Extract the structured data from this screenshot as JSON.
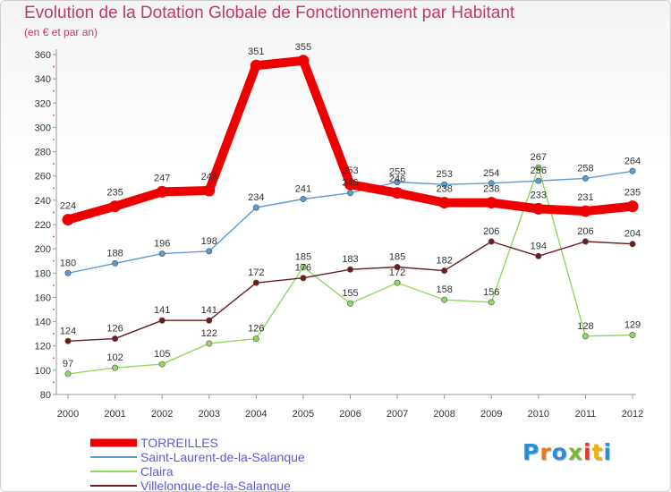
{
  "title": "Evolution de la Dotation Globale de Fonctionnement par Habitant",
  "subtitle": "(en € et par an)",
  "logo": {
    "text": "Proxiti",
    "letter_colors": [
      "#2a8fd0",
      "#e87a1c",
      "#2a8fd0",
      "#7db83a",
      "#e23a2a",
      "#f0b400",
      "#2a8fd0"
    ]
  },
  "chart_data": {
    "type": "line",
    "title": "Evolution de la Dotation Globale de Fonctionnement par Habitant",
    "subtitle": "(en € et par an)",
    "xlabel": "",
    "ylabel": "",
    "x": [
      "2000",
      "2001",
      "2002",
      "2003",
      "2004",
      "2005",
      "2006",
      "2007",
      "2008",
      "2009",
      "2010",
      "2011",
      "2012"
    ],
    "ylim": [
      80,
      360
    ],
    "yticks": [
      80,
      100,
      120,
      140,
      160,
      180,
      200,
      220,
      240,
      260,
      280,
      300,
      320,
      340,
      360
    ],
    "grid": false,
    "legend_position": "bottom-left",
    "series": [
      {
        "name": "TORREILLES",
        "color": "#ee0000",
        "values": [
          224,
          235,
          247,
          248,
          351,
          355,
          253,
          246,
          238,
          238,
          233,
          231,
          235
        ],
        "labels": [
          "224",
          "235",
          "247",
          "248",
          "351",
          "355",
          "253",
          "246",
          "238",
          "238",
          "233",
          "231",
          "235"
        ]
      },
      {
        "name": "Saint-Laurent-de-la-Salanque",
        "color": "#5b9bd5",
        "values": [
          180,
          188,
          196,
          198,
          234,
          241,
          246,
          255,
          253,
          254,
          256,
          258,
          264
        ],
        "labels": [
          "180",
          "188",
          "196",
          "198",
          "234",
          "241",
          "246",
          "255",
          "253",
          "254",
          "256",
          "258",
          "264"
        ]
      },
      {
        "name": "Claira",
        "color": "#8fd860",
        "values": [
          97,
          102,
          105,
          122,
          126,
          185,
          155,
          172,
          158,
          156,
          267,
          128,
          129
        ],
        "labels": [
          "97",
          "102",
          "105",
          "122",
          "126",
          "185",
          "155",
          "172",
          "158",
          "156",
          "267",
          "128",
          "129"
        ]
      },
      {
        "name": "Villelongue-de-la-Salanque",
        "color": "#6b1c1c",
        "values": [
          124,
          126,
          141,
          141,
          172,
          176,
          183,
          185,
          182,
          206,
          194,
          206,
          204
        ],
        "labels": [
          "124",
          "126",
          "141",
          "141",
          "172",
          "176",
          "183",
          "185",
          "182",
          "206",
          "194",
          "206",
          "204"
        ]
      }
    ]
  }
}
